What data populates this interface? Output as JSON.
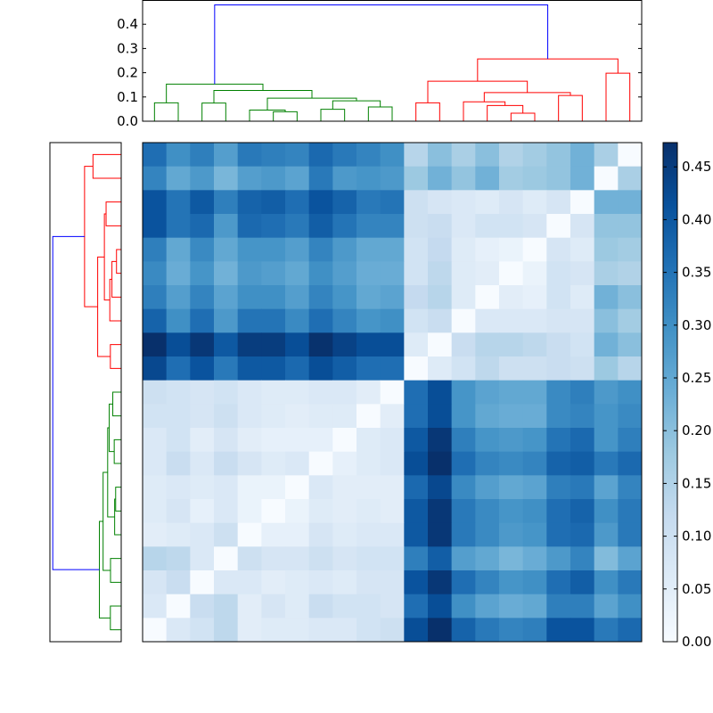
{
  "chart_data": {
    "type": "heatmap",
    "title": "",
    "colormap": "Blues",
    "colorbar": {
      "vmin": 0.0,
      "vmax": 0.473,
      "ticks": [
        "0.00",
        "0.05",
        "0.10",
        "0.15",
        "0.20",
        "0.25",
        "0.30",
        "0.35",
        "0.40",
        "0.45"
      ]
    },
    "colormap_stops": [
      "#f7fbff",
      "#deebf7",
      "#c6dbef",
      "#9ecae1",
      "#6baed6",
      "#4292c6",
      "#2171b5",
      "#08519c",
      "#08306b"
    ],
    "dendrogram": {
      "yticks": [
        "0.0",
        "0.1",
        "0.2",
        "0.3",
        "0.4"
      ],
      "ymax": 0.5,
      "colors": {
        "green": "#008000",
        "red": "#ff0000",
        "blue": "#0000ff"
      },
      "linkage": [
        [
          0,
          1,
          0.076,
          "green"
        ],
        [
          2,
          3,
          0.075,
          "green"
        ],
        [
          5,
          6,
          0.039,
          "green"
        ],
        [
          4,
          23,
          0.046,
          "green"
        ],
        [
          7,
          8,
          0.049,
          "green"
        ],
        [
          9,
          10,
          0.059,
          "green"
        ],
        [
          25,
          26,
          0.084,
          "green"
        ],
        [
          24,
          27,
          0.095,
          "green"
        ],
        [
          22,
          28,
          0.127,
          "green"
        ],
        [
          21,
          29,
          0.153,
          "green"
        ],
        [
          11,
          12,
          0.076,
          "red"
        ],
        [
          15,
          16,
          0.033,
          "red"
        ],
        [
          14,
          32,
          0.065,
          "red"
        ],
        [
          13,
          33,
          0.08,
          "red"
        ],
        [
          17,
          18,
          0.106,
          "red"
        ],
        [
          34,
          35,
          0.118,
          "red"
        ],
        [
          31,
          36,
          0.165,
          "red"
        ],
        [
          19,
          20,
          0.198,
          "red"
        ],
        [
          37,
          38,
          0.257,
          "red"
        ],
        [
          30,
          39,
          0.48,
          "blue"
        ]
      ]
    },
    "matrix": [
      [
        0.36,
        0.3,
        0.33,
        0.27,
        0.34,
        0.33,
        0.32,
        0.37,
        0.34,
        0.32,
        0.3,
        0.14,
        0.2,
        0.16,
        0.2,
        0.15,
        0.17,
        0.19,
        0.23,
        0.16,
        0.0
      ],
      [
        0.32,
        0.25,
        0.28,
        0.22,
        0.27,
        0.28,
        0.26,
        0.34,
        0.28,
        0.29,
        0.28,
        0.18,
        0.23,
        0.19,
        0.23,
        0.17,
        0.18,
        0.19,
        0.23,
        0.0,
        0.16
      ],
      [
        0.41,
        0.35,
        0.4,
        0.33,
        0.38,
        0.39,
        0.36,
        0.41,
        0.38,
        0.34,
        0.35,
        0.1,
        0.08,
        0.07,
        0.06,
        0.08,
        0.06,
        0.08,
        0.0,
        0.23,
        0.23
      ],
      [
        0.41,
        0.35,
        0.37,
        0.28,
        0.37,
        0.36,
        0.34,
        0.39,
        0.35,
        0.32,
        0.32,
        0.1,
        0.11,
        0.07,
        0.09,
        0.09,
        0.08,
        0.0,
        0.08,
        0.19,
        0.19
      ],
      [
        0.33,
        0.25,
        0.31,
        0.25,
        0.29,
        0.29,
        0.27,
        0.32,
        0.28,
        0.25,
        0.25,
        0.09,
        0.12,
        0.06,
        0.04,
        0.03,
        0.0,
        0.08,
        0.06,
        0.18,
        0.17
      ],
      [
        0.31,
        0.24,
        0.29,
        0.23,
        0.28,
        0.27,
        0.25,
        0.3,
        0.27,
        0.24,
        0.24,
        0.09,
        0.13,
        0.06,
        0.05,
        0.0,
        0.03,
        0.09,
        0.08,
        0.16,
        0.15
      ],
      [
        0.33,
        0.27,
        0.32,
        0.26,
        0.3,
        0.3,
        0.27,
        0.32,
        0.29,
        0.25,
        0.26,
        0.12,
        0.14,
        0.06,
        0.0,
        0.05,
        0.04,
        0.09,
        0.06,
        0.23,
        0.2
      ],
      [
        0.38,
        0.3,
        0.36,
        0.28,
        0.35,
        0.35,
        0.31,
        0.36,
        0.32,
        0.29,
        0.3,
        0.09,
        0.11,
        0.0,
        0.07,
        0.07,
        0.07,
        0.08,
        0.08,
        0.2,
        0.17
      ],
      [
        0.475,
        0.42,
        0.46,
        0.4,
        0.45,
        0.45,
        0.42,
        0.47,
        0.44,
        0.42,
        0.42,
        0.06,
        0.0,
        0.11,
        0.14,
        0.14,
        0.13,
        0.11,
        0.09,
        0.23,
        0.2
      ],
      [
        0.43,
        0.36,
        0.41,
        0.34,
        0.4,
        0.4,
        0.37,
        0.42,
        0.39,
        0.36,
        0.36,
        0.0,
        0.06,
        0.09,
        0.13,
        0.1,
        0.1,
        0.11,
        0.1,
        0.18,
        0.14
      ],
      [
        0.1,
        0.09,
        0.08,
        0.09,
        0.07,
        0.06,
        0.06,
        0.07,
        0.07,
        0.05,
        0.0,
        0.36,
        0.42,
        0.29,
        0.26,
        0.25,
        0.25,
        0.31,
        0.33,
        0.28,
        0.3
      ],
      [
        0.09,
        0.09,
        0.08,
        0.1,
        0.07,
        0.06,
        0.05,
        0.06,
        0.06,
        0.0,
        0.05,
        0.36,
        0.42,
        0.29,
        0.25,
        0.24,
        0.24,
        0.31,
        0.32,
        0.29,
        0.31
      ],
      [
        0.07,
        0.09,
        0.05,
        0.08,
        0.05,
        0.04,
        0.04,
        0.04,
        0.0,
        0.06,
        0.07,
        0.4,
        0.46,
        0.33,
        0.29,
        0.28,
        0.29,
        0.35,
        0.37,
        0.29,
        0.33
      ],
      [
        0.07,
        0.11,
        0.07,
        0.11,
        0.08,
        0.06,
        0.07,
        0.0,
        0.04,
        0.06,
        0.07,
        0.42,
        0.475,
        0.36,
        0.32,
        0.31,
        0.32,
        0.38,
        0.39,
        0.34,
        0.37
      ],
      [
        0.06,
        0.07,
        0.06,
        0.07,
        0.03,
        0.03,
        0.0,
        0.07,
        0.05,
        0.05,
        0.05,
        0.37,
        0.43,
        0.31,
        0.27,
        0.25,
        0.26,
        0.33,
        0.34,
        0.26,
        0.32
      ],
      [
        0.06,
        0.08,
        0.04,
        0.07,
        0.03,
        0.0,
        0.03,
        0.06,
        0.05,
        0.06,
        0.05,
        0.4,
        0.46,
        0.34,
        0.31,
        0.29,
        0.3,
        0.36,
        0.38,
        0.3,
        0.34
      ],
      [
        0.05,
        0.06,
        0.07,
        0.1,
        0.0,
        0.04,
        0.04,
        0.08,
        0.06,
        0.07,
        0.07,
        0.4,
        0.46,
        0.34,
        0.31,
        0.28,
        0.29,
        0.36,
        0.37,
        0.28,
        0.34
      ],
      [
        0.14,
        0.13,
        0.07,
        0.0,
        0.1,
        0.08,
        0.08,
        0.1,
        0.08,
        0.09,
        0.09,
        0.33,
        0.39,
        0.27,
        0.25,
        0.22,
        0.24,
        0.28,
        0.32,
        0.21,
        0.26
      ],
      [
        0.08,
        0.11,
        0.0,
        0.07,
        0.07,
        0.05,
        0.06,
        0.07,
        0.06,
        0.08,
        0.08,
        0.41,
        0.46,
        0.36,
        0.32,
        0.29,
        0.3,
        0.36,
        0.39,
        0.3,
        0.34
      ],
      [
        0.07,
        0.0,
        0.11,
        0.13,
        0.05,
        0.08,
        0.06,
        0.11,
        0.09,
        0.09,
        0.08,
        0.36,
        0.42,
        0.3,
        0.26,
        0.24,
        0.25,
        0.33,
        0.33,
        0.26,
        0.3
      ],
      [
        0.0,
        0.07,
        0.09,
        0.13,
        0.05,
        0.06,
        0.06,
        0.07,
        0.07,
        0.09,
        0.1,
        0.42,
        0.475,
        0.38,
        0.34,
        0.32,
        0.33,
        0.41,
        0.41,
        0.34,
        0.37
      ]
    ]
  }
}
